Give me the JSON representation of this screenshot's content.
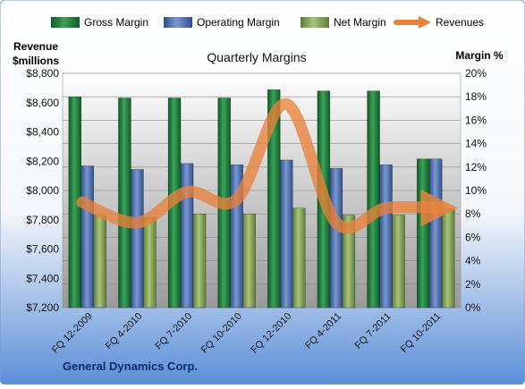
{
  "chart_data": {
    "type": "bar",
    "title": "Quarterly Margins",
    "left_axis_title_line1": "Revenue",
    "left_axis_title_line2": "$millions",
    "right_axis_title": "Margin %",
    "footer": "General Dynamics Corp.",
    "categories": [
      "FQ 12-2009",
      "FQ 4-2010",
      "FQ 7-2010",
      "FQ 10-2010",
      "FQ 12-2010",
      "FQ 4-2011",
      "FQ 7-2011",
      "FQ 10-2011"
    ],
    "left_axis": {
      "min": 7200,
      "max": 8800,
      "ticks": [
        "$7,200",
        "$7,400",
        "$7,600",
        "$7,800",
        "$8,000",
        "$8,200",
        "$8,400",
        "$8,600",
        "$8,800"
      ]
    },
    "right_axis": {
      "min": 0,
      "max": 20,
      "ticks": [
        "0%",
        "2%",
        "4%",
        "6%",
        "8%",
        "10%",
        "12%",
        "14%",
        "16%",
        "18%",
        "20%"
      ]
    },
    "series": [
      {
        "name": "Gross Margin",
        "axis": "right",
        "kind": "bar",
        "color": "#1e7a3a",
        "values": [
          18.0,
          17.9,
          17.9,
          17.9,
          18.6,
          18.5,
          18.5,
          12.7
        ]
      },
      {
        "name": "Operating Margin",
        "axis": "right",
        "kind": "bar",
        "color": "#4f6fae",
        "values": [
          12.1,
          11.8,
          12.3,
          12.2,
          12.6,
          11.9,
          12.2,
          12.7
        ]
      },
      {
        "name": "Net Margin",
        "axis": "right",
        "kind": "bar",
        "color": "#8aa85a",
        "values": [
          7.9,
          7.7,
          8.0,
          8.0,
          8.5,
          7.9,
          7.9,
          8.4
        ]
      },
      {
        "name": "Revenues",
        "axis": "left",
        "kind": "line",
        "color": "#e8823a",
        "values": [
          7920,
          7780,
          7990,
          7940,
          8590,
          7780,
          7880,
          7880
        ]
      }
    ],
    "legend_position": "top",
    "grid": true
  }
}
